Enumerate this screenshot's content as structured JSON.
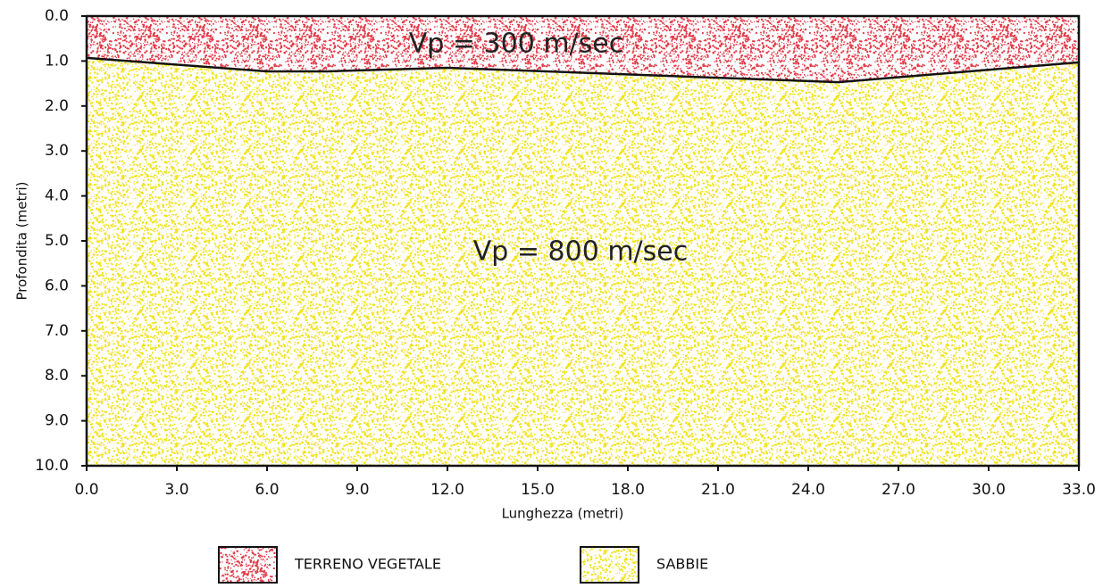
{
  "chart_data": {
    "type": "area",
    "x_label": "Lunghezza (metri)",
    "y_label": "Profondita (metri)",
    "xlim": [
      0,
      33
    ],
    "ylim": [
      0,
      10
    ],
    "y_inverted": true,
    "xticks": [
      {
        "value": 0,
        "label": "0.0"
      },
      {
        "value": 3,
        "label": "3.0"
      },
      {
        "value": 6,
        "label": "6.0"
      },
      {
        "value": 9,
        "label": "9.0"
      },
      {
        "value": 12,
        "label": "12.0"
      },
      {
        "value": 15,
        "label": "15.0"
      },
      {
        "value": 18,
        "label": "18.0"
      },
      {
        "value": 21,
        "label": "21.0"
      },
      {
        "value": 24,
        "label": "24.0"
      },
      {
        "value": 27,
        "label": "27.0"
      },
      {
        "value": 30,
        "label": "30.0"
      },
      {
        "value": 33,
        "label": "33.0"
      }
    ],
    "yticks": [
      {
        "value": 0,
        "label": "0.0"
      },
      {
        "value": 1,
        "label": "1.0"
      },
      {
        "value": 2,
        "label": "2.0"
      },
      {
        "value": 3,
        "label": "3.0"
      },
      {
        "value": 4,
        "label": "4.0"
      },
      {
        "value": 5,
        "label": "5.0"
      },
      {
        "value": 6,
        "label": "6.0"
      },
      {
        "value": 7,
        "label": "7.0"
      },
      {
        "value": 8,
        "label": "8.0"
      },
      {
        "value": 9,
        "label": "9.0"
      },
      {
        "value": 10,
        "label": "10.0"
      }
    ],
    "boundary": {
      "x": [
        0,
        6,
        8,
        12,
        25,
        33
      ],
      "depth": [
        0.93,
        1.23,
        1.23,
        1.15,
        1.47,
        1.03
      ]
    },
    "layers": [
      {
        "name": "TERRENO VEGETALE",
        "color": "#e23a48",
        "velocity": "Vp = 300 m/sec"
      },
      {
        "name": "SABBIE",
        "color": "#f2e21a",
        "velocity": "Vp = 800 m/sec"
      }
    ]
  }
}
